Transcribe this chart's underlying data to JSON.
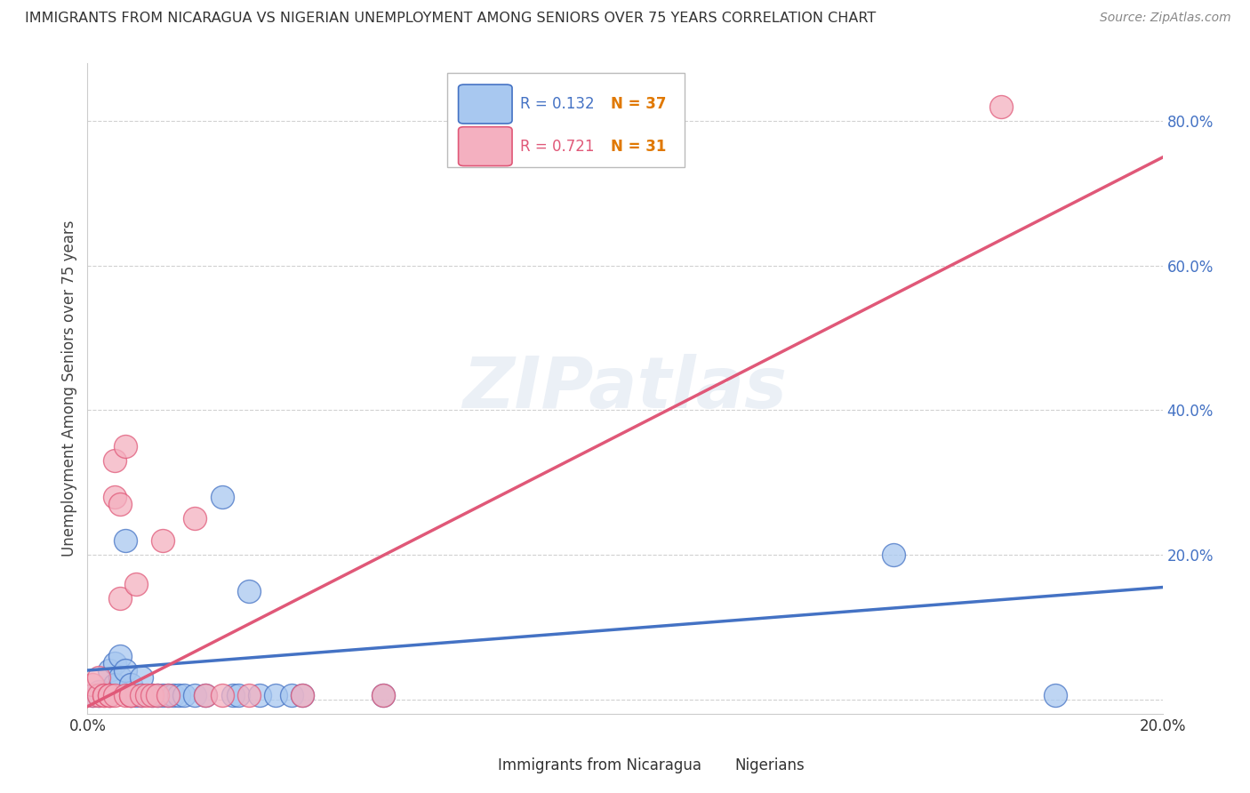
{
  "title": "IMMIGRANTS FROM NICARAGUA VS NIGERIAN UNEMPLOYMENT AMONG SENIORS OVER 75 YEARS CORRELATION CHART",
  "source": "Source: ZipAtlas.com",
  "ylabel": "Unemployment Among Seniors over 75 years",
  "xlim": [
    0.0,
    0.2
  ],
  "ylim": [
    -0.02,
    0.88
  ],
  "yticks": [
    0.0,
    0.2,
    0.4,
    0.6,
    0.8
  ],
  "ytick_labels": [
    "",
    "20.0%",
    "40.0%",
    "60.0%",
    "80.0%"
  ],
  "background_color": "#ffffff",
  "grid_color": "#cccccc",
  "nicaragua_color": "#a8c8f0",
  "nigerian_color": "#f4b0c0",
  "nicaragua_line_color": "#4472c4",
  "nigerian_line_color": "#e05878",
  "r_nicaragua": "0.132",
  "n_nicaragua": "37",
  "r_nigerian": "0.721",
  "n_nigerian": "31",
  "label_nicaragua": "Immigrants from Nicaragua",
  "label_nigerian": "Nigerians",
  "watermark": "ZIPatlas",
  "nicaragua_line_endpoints": [
    [
      0.0,
      0.04
    ],
    [
      0.2,
      0.155
    ]
  ],
  "nigerian_line_endpoints": [
    [
      0.0,
      -0.01
    ],
    [
      0.2,
      0.75
    ]
  ],
  "nicaragua_points": [
    [
      0.001,
      0.005
    ],
    [
      0.002,
      0.01
    ],
    [
      0.002,
      0.005
    ],
    [
      0.003,
      0.008
    ],
    [
      0.004,
      0.005
    ],
    [
      0.004,
      0.04
    ],
    [
      0.005,
      0.05
    ],
    [
      0.005,
      0.02
    ],
    [
      0.006,
      0.06
    ],
    [
      0.006,
      0.03
    ],
    [
      0.007,
      0.04
    ],
    [
      0.007,
      0.22
    ],
    [
      0.008,
      0.02
    ],
    [
      0.008,
      0.005
    ],
    [
      0.009,
      0.005
    ],
    [
      0.01,
      0.03
    ],
    [
      0.01,
      0.005
    ],
    [
      0.012,
      0.005
    ],
    [
      0.013,
      0.005
    ],
    [
      0.014,
      0.005
    ],
    [
      0.015,
      0.005
    ],
    [
      0.016,
      0.005
    ],
    [
      0.017,
      0.005
    ],
    [
      0.018,
      0.005
    ],
    [
      0.02,
      0.005
    ],
    [
      0.022,
      0.005
    ],
    [
      0.025,
      0.28
    ],
    [
      0.027,
      0.005
    ],
    [
      0.028,
      0.005
    ],
    [
      0.03,
      0.15
    ],
    [
      0.032,
      0.005
    ],
    [
      0.035,
      0.005
    ],
    [
      0.038,
      0.005
    ],
    [
      0.04,
      0.005
    ],
    [
      0.055,
      0.005
    ],
    [
      0.15,
      0.2
    ],
    [
      0.18,
      0.005
    ]
  ],
  "nigerian_points": [
    [
      0.001,
      0.005
    ],
    [
      0.001,
      0.02
    ],
    [
      0.002,
      0.005
    ],
    [
      0.002,
      0.03
    ],
    [
      0.003,
      0.005
    ],
    [
      0.003,
      0.005
    ],
    [
      0.004,
      0.005
    ],
    [
      0.004,
      0.005
    ],
    [
      0.005,
      0.28
    ],
    [
      0.005,
      0.33
    ],
    [
      0.005,
      0.005
    ],
    [
      0.006,
      0.14
    ],
    [
      0.006,
      0.27
    ],
    [
      0.007,
      0.005
    ],
    [
      0.007,
      0.35
    ],
    [
      0.008,
      0.005
    ],
    [
      0.008,
      0.005
    ],
    [
      0.009,
      0.16
    ],
    [
      0.01,
      0.005
    ],
    [
      0.011,
      0.005
    ],
    [
      0.012,
      0.005
    ],
    [
      0.013,
      0.005
    ],
    [
      0.014,
      0.22
    ],
    [
      0.015,
      0.005
    ],
    [
      0.02,
      0.25
    ],
    [
      0.022,
      0.005
    ],
    [
      0.025,
      0.005
    ],
    [
      0.03,
      0.005
    ],
    [
      0.04,
      0.005
    ],
    [
      0.055,
      0.005
    ],
    [
      0.17,
      0.82
    ]
  ]
}
